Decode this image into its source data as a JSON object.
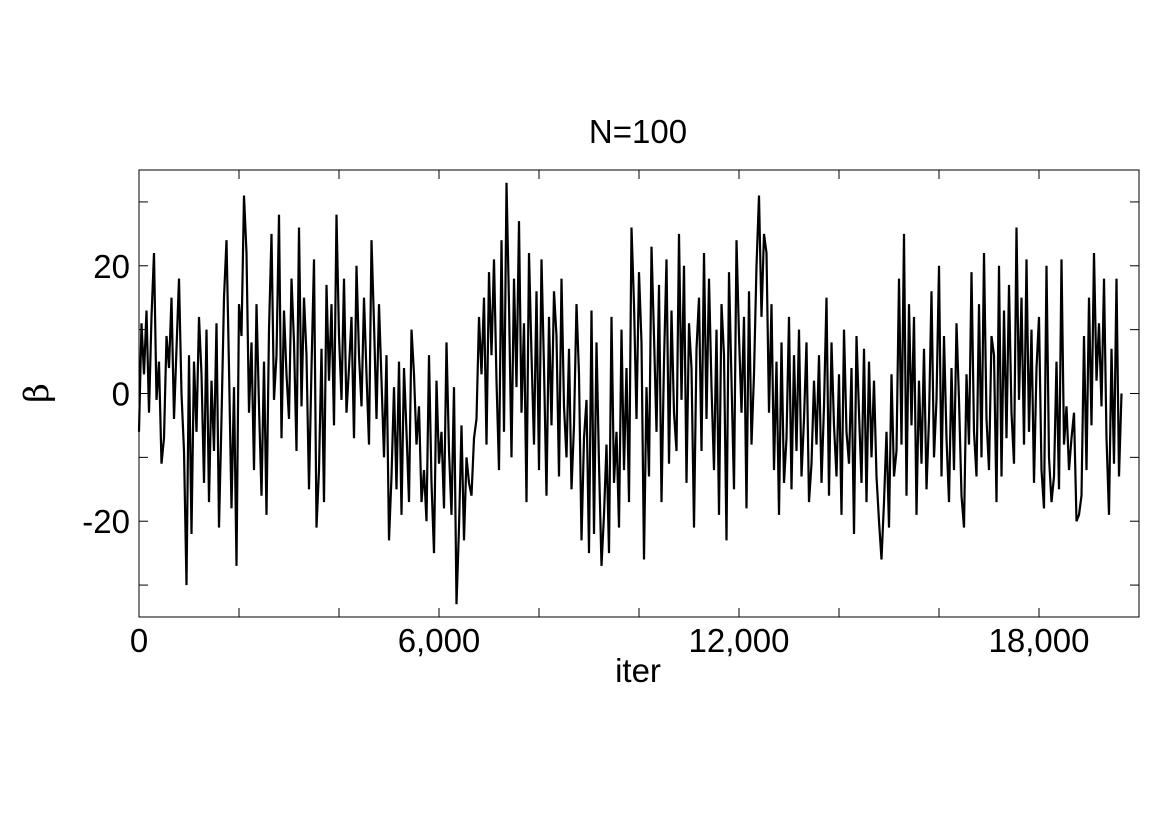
{
  "chart_data": {
    "type": "line",
    "title": "N=100",
    "xlabel": "iter",
    "ylabel": "β",
    "xlim": [
      0,
      20000
    ],
    "ylim": [
      -35,
      35
    ],
    "xticks": [
      0,
      6000,
      12000,
      18000
    ],
    "xtick_labels": [
      "0",
      "6,000",
      "12,000",
      "18,000"
    ],
    "yticks": [
      -20,
      0,
      20
    ],
    "ytick_labels": [
      "-20",
      "0",
      "20"
    ],
    "grid": false,
    "line_color": "#000000",
    "series": [
      {
        "x_start": 0,
        "x_step": 50,
        "values": [
          -6,
          11,
          3,
          13,
          -3,
          12,
          22,
          -1,
          5,
          -11,
          -7,
          9,
          4,
          15,
          -4,
          7,
          18,
          0,
          -9,
          -30,
          6,
          -22,
          5,
          -6,
          12,
          3,
          -14,
          10,
          -17,
          2,
          -9,
          11,
          -21,
          -4,
          15,
          24,
          4,
          -18,
          1,
          -27,
          14,
          9,
          31,
          22,
          -3,
          8,
          -12,
          14,
          -2,
          -16,
          5,
          -19,
          10,
          25,
          -1,
          6,
          28,
          -7,
          13,
          3,
          -4,
          18,
          8,
          -9,
          26,
          -2,
          15,
          6,
          -15,
          4,
          21,
          -21,
          -12,
          7,
          -17,
          17,
          2,
          14,
          -5,
          28,
          9,
          -1,
          18,
          -3,
          4,
          12,
          -7,
          20,
          6,
          -2,
          15,
          3,
          -8,
          24,
          11,
          -4,
          14,
          2,
          -10,
          6,
          -23,
          -13,
          1,
          -15,
          5,
          -19,
          4,
          -6,
          -17,
          10,
          3,
          -8,
          -2,
          -17,
          -12,
          -20,
          6,
          -14,
          -25,
          2,
          -11,
          -6,
          -18,
          8,
          -9,
          -19,
          1,
          -33,
          -21,
          -5,
          -23,
          -10,
          -14,
          -16,
          -7,
          -4,
          12,
          3,
          15,
          -8,
          19,
          6,
          21,
          2,
          -12,
          24,
          -6,
          33,
          14,
          -10,
          18,
          1,
          27,
          -3,
          11,
          -17,
          22,
          6,
          -8,
          16,
          -12,
          21,
          4,
          -16,
          12,
          -5,
          16,
          9,
          -13,
          18,
          -2,
          -10,
          7,
          -15,
          -5,
          14,
          3,
          -23,
          -7,
          -1,
          -25,
          13,
          -22,
          8,
          -11,
          -27,
          -19,
          -8,
          -25,
          12,
          -14,
          -6,
          -21,
          10,
          -12,
          4,
          -17,
          26,
          14,
          -4,
          19,
          8,
          -26,
          1,
          -13,
          23,
          9,
          -6,
          17,
          -17,
          5,
          21,
          -11,
          13,
          -3,
          -9,
          25,
          -1,
          20,
          -14,
          11,
          4,
          -21,
          7,
          15,
          -9,
          22,
          -4,
          18,
          1,
          -12,
          10,
          -19,
          14,
          6,
          -23,
          19,
          2,
          -15,
          24,
          9,
          -3,
          12,
          -18,
          16,
          -8,
          3,
          20,
          31,
          12,
          25,
          22,
          -3,
          14,
          -12,
          5,
          -19,
          8,
          -14,
          -7,
          12,
          -15,
          6,
          -9,
          10,
          -13,
          -4,
          8,
          -17,
          -11,
          2,
          -8,
          6,
          -14,
          -2,
          15,
          -16,
          8,
          -5,
          -13,
          3,
          -19,
          10,
          -6,
          -11,
          4,
          -22,
          9,
          -3,
          -14,
          7,
          -17,
          5,
          -10,
          2,
          -13,
          -20,
          -26,
          -17,
          -6,
          -21,
          3,
          -13,
          -9,
          18,
          -8,
          25,
          -16,
          14,
          -5,
          12,
          -19,
          2,
          -11,
          7,
          -15,
          -4,
          16,
          -10,
          -1,
          20,
          -13,
          9,
          -7,
          -17,
          4,
          -12,
          11,
          -1,
          -16,
          -21,
          3,
          -8,
          19,
          -6,
          -13,
          14,
          -10,
          22,
          -4,
          -12,
          9,
          6,
          -17,
          20,
          -13,
          13,
          -7,
          17,
          -3,
          -11,
          26,
          -1,
          15,
          -8,
          21,
          -6,
          10,
          -14,
          4,
          12,
          -12,
          -18,
          20,
          -10,
          -17,
          -13,
          5,
          -15,
          21,
          -8,
          -2,
          -12,
          -7,
          -3,
          -20,
          -19,
          -16,
          9,
          -12,
          15,
          -5,
          22,
          2,
          11,
          -2,
          18,
          -7,
          -19,
          7,
          -11,
          18,
          -13,
          0
        ]
      }
    ]
  }
}
